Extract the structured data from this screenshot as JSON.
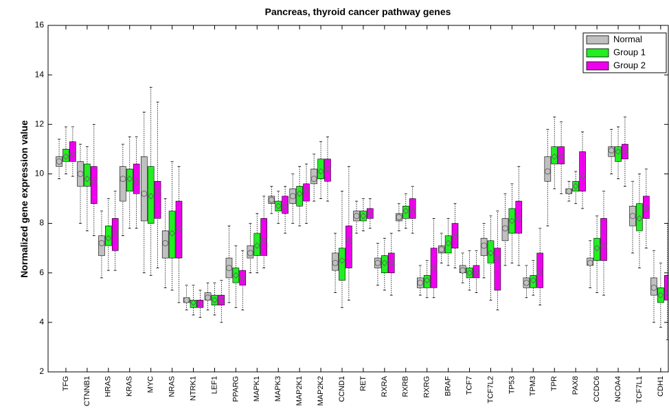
{
  "chart_data": {
    "type": "box",
    "title": "Pancreas, thyroid cancer pathway genes",
    "y_label": "Normalized gene expression value",
    "categories": [
      "TFG",
      "CTNNB1",
      "HRAS",
      "KRAS",
      "MYC",
      "NRAS",
      "NTRK1",
      "LEF1",
      "PPARG",
      "MAPK1",
      "MAPK3",
      "MAP2K1",
      "MAP2K2",
      "CCND1",
      "RET",
      "RXRA",
      "RXRB",
      "RXRG",
      "BRAF",
      "TCF7",
      "TCF7L2",
      "TP53",
      "TPM3",
      "TPR",
      "PAX8",
      "CCDC6",
      "NCOA4",
      "TCF7L1",
      "CDH1"
    ],
    "ylim": [
      2,
      16
    ],
    "yticks": [
      2,
      4,
      6,
      8,
      10,
      12,
      14,
      16
    ],
    "xlim": [
      0.16,
      29.36
    ],
    "legend": "upper right",
    "series": [
      {
        "name": "Normal",
        "color": "#c0c0c0",
        "whislo": [
          9.8,
          8.0,
          5.8,
          7.5,
          6.0,
          5.4,
          4.5,
          4.5,
          4.8,
          6.0,
          8.4,
          8.0,
          8.9,
          5.2,
          7.6,
          5.5,
          7.7,
          5.1,
          6.4,
          5.6,
          5.8,
          6.3,
          5.0,
          7.9,
          8.9,
          5.4,
          10.0,
          6.8,
          4.0
        ],
        "q1": [
          10.3,
          9.5,
          6.7,
          8.9,
          8.1,
          6.6,
          4.8,
          4.9,
          5.8,
          6.6,
          8.8,
          8.8,
          9.6,
          6.1,
          8.1,
          6.2,
          8.1,
          5.4,
          6.8,
          6.0,
          6.7,
          7.3,
          5.4,
          9.7,
          9.2,
          6.3,
          10.7,
          7.9,
          5.1
        ],
        "median": [
          10.5,
          10.0,
          7.2,
          9.8,
          9.2,
          7.2,
          4.9,
          5.0,
          6.2,
          6.8,
          8.95,
          9.1,
          9.8,
          6.4,
          8.3,
          6.4,
          8.25,
          5.6,
          6.95,
          6.1,
          7.1,
          7.8,
          5.6,
          10.1,
          9.3,
          6.4,
          10.95,
          8.3,
          5.4
        ],
        "q3": [
          10.7,
          10.5,
          7.5,
          10.3,
          10.7,
          7.7,
          5.0,
          5.2,
          6.6,
          7.1,
          9.1,
          9.4,
          10.2,
          6.8,
          8.5,
          6.6,
          8.4,
          5.8,
          7.1,
          6.3,
          7.4,
          8.2,
          5.8,
          10.7,
          9.4,
          6.6,
          11.1,
          8.7,
          5.8
        ],
        "whishi": [
          11.4,
          11.2,
          8.5,
          11.2,
          12.5,
          9.0,
          5.5,
          5.6,
          7.9,
          8.0,
          9.5,
          10.0,
          10.8,
          7.6,
          8.9,
          7.2,
          8.8,
          6.3,
          7.6,
          6.8,
          8.0,
          9.2,
          6.3,
          11.8,
          9.7,
          7.3,
          11.8,
          9.7,
          6.9
        ]
      },
      {
        "name": "Group 1",
        "color": "#22ee22",
        "whislo": [
          10.0,
          7.7,
          6.1,
          7.8,
          5.9,
          5.3,
          4.3,
          4.3,
          4.6,
          6.0,
          8.0,
          7.9,
          9.0,
          4.6,
          7.7,
          5.3,
          7.8,
          5.0,
          6.3,
          5.3,
          4.9,
          6.4,
          5.1,
          9.4,
          8.8,
          5.2,
          9.8,
          6.2,
          3.8
        ],
        "q1": [
          10.5,
          9.5,
          7.1,
          9.3,
          8.0,
          6.6,
          4.6,
          4.7,
          5.6,
          6.7,
          8.5,
          8.7,
          9.8,
          5.7,
          8.1,
          6.0,
          8.2,
          5.4,
          6.8,
          5.8,
          6.4,
          7.6,
          5.4,
          10.4,
          9.3,
          6.5,
          10.5,
          7.7,
          4.8
        ],
        "median": [
          10.7,
          9.8,
          7.4,
          9.8,
          9.1,
          7.6,
          4.8,
          4.9,
          5.9,
          7.1,
          8.7,
          9.2,
          10.1,
          6.5,
          8.3,
          6.4,
          8.5,
          5.7,
          7.2,
          6.0,
          6.8,
          8.1,
          5.7,
          10.7,
          9.5,
          7.0,
          10.9,
          8.2,
          5.1
        ],
        "q3": [
          11.0,
          10.4,
          7.9,
          10.2,
          10.3,
          8.5,
          4.9,
          5.1,
          6.2,
          7.6,
          8.9,
          9.5,
          10.6,
          7.0,
          8.5,
          6.7,
          8.7,
          5.9,
          7.5,
          6.2,
          7.3,
          8.6,
          5.9,
          11.1,
          9.7,
          7.4,
          11.1,
          8.8,
          5.4
        ],
        "whishi": [
          11.9,
          11.1,
          9.0,
          11.5,
          13.5,
          10.5,
          5.5,
          5.6,
          7.1,
          8.4,
          9.3,
          10.3,
          11.3,
          9.3,
          9.0,
          7.4,
          9.2,
          6.5,
          8.2,
          6.9,
          8.3,
          9.6,
          6.5,
          12.3,
          10.1,
          8.3,
          11.9,
          10.0,
          6.4
        ]
      },
      {
        "name": "Group 2",
        "color": "#ee00ee",
        "whislo": [
          9.9,
          7.5,
          6.1,
          7.8,
          6.2,
          4.8,
          4.2,
          4.0,
          4.5,
          6.2,
          7.6,
          8.0,
          8.9,
          4.9,
          7.8,
          5.1,
          7.6,
          5.0,
          6.2,
          5.2,
          4.5,
          6.3,
          4.7,
          9.2,
          8.6,
          5.1,
          9.5,
          7.0,
          3.3
        ],
        "q1": [
          10.5,
          8.8,
          6.9,
          9.2,
          8.2,
          6.6,
          4.6,
          4.7,
          5.5,
          6.7,
          8.4,
          8.9,
          9.7,
          6.2,
          8.2,
          6.0,
          8.2,
          5.4,
          7.0,
          5.8,
          5.3,
          7.6,
          5.4,
          10.4,
          9.3,
          6.5,
          10.6,
          8.2,
          4.9
        ],
        "median": [
          10.8,
          9.7,
          7.6,
          9.7,
          9.3,
          7.8,
          4.75,
          4.9,
          5.8,
          7.3,
          8.7,
          9.3,
          10.2,
          7.3,
          8.4,
          6.4,
          8.5,
          6.2,
          7.5,
          6.0,
          6.6,
          8.2,
          6.0,
          10.7,
          9.9,
          7.1,
          10.9,
          8.6,
          5.2
        ],
        "q3": [
          11.3,
          10.3,
          8.2,
          10.4,
          9.7,
          8.9,
          4.9,
          5.1,
          6.1,
          8.2,
          9.1,
          9.6,
          10.6,
          7.9,
          8.6,
          6.8,
          9.0,
          7.0,
          8.0,
          6.3,
          7.0,
          8.9,
          6.8,
          11.1,
          10.9,
          8.2,
          11.2,
          9.1,
          5.9
        ],
        "whishi": [
          11.9,
          12.0,
          9.3,
          11.5,
          12.9,
          10.3,
          5.3,
          5.7,
          6.9,
          9.1,
          9.5,
          10.4,
          11.5,
          10.3,
          9.0,
          7.6,
          9.5,
          8.2,
          8.8,
          6.9,
          8.5,
          10.3,
          7.8,
          12.1,
          11.7,
          9.3,
          12.3,
          10.2,
          8.0
        ]
      }
    ]
  }
}
